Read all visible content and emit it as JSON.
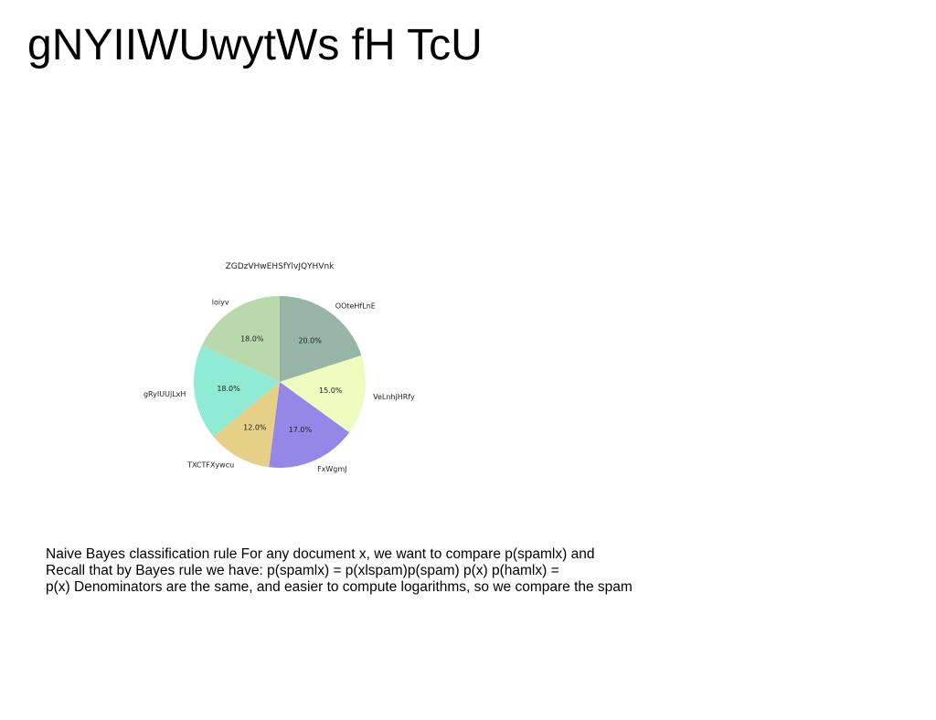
{
  "slide": {
    "title": "gNYIIWUwytWs fH TcU"
  },
  "chart_data": {
    "type": "pie",
    "title": "ZGDzVHwEHSfYlvJQYHVnk",
    "labels": [
      "OOteHfLnE",
      "VeLnhjHRfy",
      "FxWgmJ",
      "TXCTFXywcu",
      "gRyIUUjLxH",
      "loiyv"
    ],
    "values": [
      20.0,
      15.0,
      17.0,
      12.0,
      18.0,
      18.0
    ],
    "value_labels": [
      "20.0%",
      "15.0%",
      "17.0%",
      "12.0%",
      "18.0%",
      "18.0%"
    ],
    "colors": [
      "#97b5a6",
      "#eefcc0",
      "#9487e8",
      "#e6cf86",
      "#8febd4",
      "#b9d8ac"
    ],
    "start_angle_deg": 90,
    "direction": "clockwise"
  },
  "body": {
    "lines": [
      "Naive Bayes classification rule For any document x, we want to compare p(spamlx) and",
      "Recall that by Bayes rule we have: p(spamlx) = p(xlspam)p(spam) p(x) p(hamlx) =",
      "p(x) Denominators are the same, and easier to compute logarithms, so we compare the spam"
    ]
  }
}
